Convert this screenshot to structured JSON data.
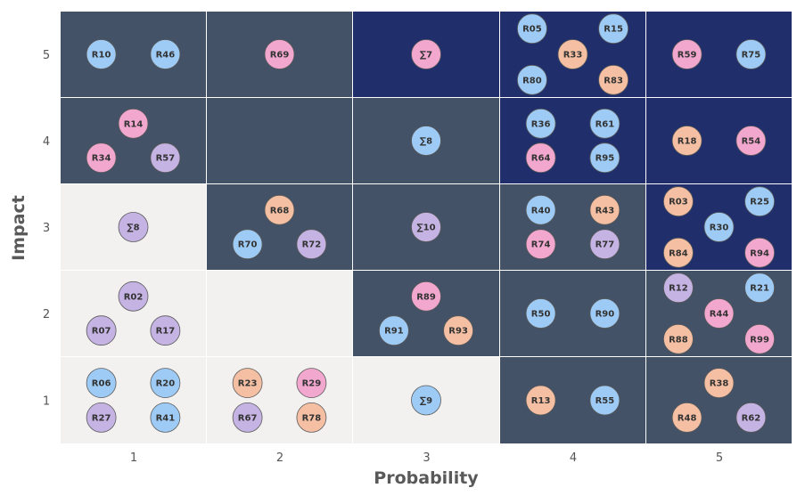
{
  "chart_data": {
    "type": "scatter",
    "subtype": "risk-matrix",
    "xlabel": "Probability",
    "ylabel": "Impact",
    "x_ticks": [
      "1",
      "2",
      "3",
      "4",
      "5"
    ],
    "y_ticks": [
      "1",
      "2",
      "3",
      "4",
      "5"
    ],
    "grid": false,
    "legend": "none",
    "colors": {
      "light": "#f2f1f0",
      "medium": "#435266",
      "high": "#202f6b",
      "blue": "#9ecbf5",
      "pink": "#f2a7cf",
      "orange": "#f4bfa2",
      "purple": "#c4b3e3",
      "marker_border": "#5a5a5a"
    },
    "cells": [
      {
        "probability": 1,
        "impact": 5,
        "level": "medium",
        "items": [
          {
            "label": "R10",
            "color": "blue"
          },
          {
            "label": "R46",
            "color": "blue"
          }
        ]
      },
      {
        "probability": 2,
        "impact": 5,
        "level": "medium",
        "items": [
          {
            "label": "R69",
            "color": "pink"
          }
        ]
      },
      {
        "probability": 3,
        "impact": 5,
        "level": "high",
        "items": [
          {
            "label": "∑7",
            "color": "pink"
          }
        ]
      },
      {
        "probability": 4,
        "impact": 5,
        "level": "high",
        "items": [
          {
            "label": "R05",
            "color": "blue"
          },
          {
            "label": "R15",
            "color": "blue"
          },
          {
            "label": "R33",
            "color": "orange"
          },
          {
            "label": "R80",
            "color": "blue"
          },
          {
            "label": "R83",
            "color": "orange"
          }
        ]
      },
      {
        "probability": 5,
        "impact": 5,
        "level": "high",
        "items": [
          {
            "label": "R59",
            "color": "pink"
          },
          {
            "label": "R75",
            "color": "blue"
          }
        ]
      },
      {
        "probability": 1,
        "impact": 4,
        "level": "medium",
        "items": [
          {
            "label": "R14",
            "color": "pink"
          },
          {
            "label": "R34",
            "color": "pink"
          },
          {
            "label": "R57",
            "color": "purple"
          }
        ]
      },
      {
        "probability": 2,
        "impact": 4,
        "level": "medium",
        "items": []
      },
      {
        "probability": 3,
        "impact": 4,
        "level": "medium",
        "items": [
          {
            "label": "∑8",
            "color": "blue"
          }
        ]
      },
      {
        "probability": 4,
        "impact": 4,
        "level": "high",
        "items": [
          {
            "label": "R36",
            "color": "blue"
          },
          {
            "label": "R61",
            "color": "blue"
          },
          {
            "label": "R64",
            "color": "pink"
          },
          {
            "label": "R95",
            "color": "blue"
          }
        ]
      },
      {
        "probability": 5,
        "impact": 4,
        "level": "high",
        "items": [
          {
            "label": "R18",
            "color": "orange"
          },
          {
            "label": "R54",
            "color": "pink"
          }
        ]
      },
      {
        "probability": 1,
        "impact": 3,
        "level": "light",
        "items": [
          {
            "label": "∑8",
            "color": "purple"
          }
        ]
      },
      {
        "probability": 2,
        "impact": 3,
        "level": "medium",
        "items": [
          {
            "label": "R68",
            "color": "orange"
          },
          {
            "label": "R70",
            "color": "blue"
          },
          {
            "label": "R72",
            "color": "purple"
          }
        ]
      },
      {
        "probability": 3,
        "impact": 3,
        "level": "medium",
        "items": [
          {
            "label": "∑10",
            "color": "purple"
          }
        ]
      },
      {
        "probability": 4,
        "impact": 3,
        "level": "medium",
        "items": [
          {
            "label": "R40",
            "color": "blue"
          },
          {
            "label": "R43",
            "color": "orange"
          },
          {
            "label": "R74",
            "color": "pink"
          },
          {
            "label": "R77",
            "color": "purple"
          }
        ]
      },
      {
        "probability": 5,
        "impact": 3,
        "level": "high",
        "items": [
          {
            "label": "R03",
            "color": "orange"
          },
          {
            "label": "R25",
            "color": "blue"
          },
          {
            "label": "R30",
            "color": "blue"
          },
          {
            "label": "R84",
            "color": "orange"
          },
          {
            "label": "R94",
            "color": "pink"
          }
        ]
      },
      {
        "probability": 1,
        "impact": 2,
        "level": "light",
        "items": [
          {
            "label": "R02",
            "color": "purple"
          },
          {
            "label": "R07",
            "color": "purple"
          },
          {
            "label": "R17",
            "color": "purple"
          }
        ]
      },
      {
        "probability": 2,
        "impact": 2,
        "level": "light",
        "items": []
      },
      {
        "probability": 3,
        "impact": 2,
        "level": "medium",
        "items": [
          {
            "label": "R89",
            "color": "pink"
          },
          {
            "label": "R91",
            "color": "blue"
          },
          {
            "label": "R93",
            "color": "orange"
          }
        ]
      },
      {
        "probability": 4,
        "impact": 2,
        "level": "medium",
        "items": [
          {
            "label": "R50",
            "color": "blue"
          },
          {
            "label": "R90",
            "color": "blue"
          }
        ]
      },
      {
        "probability": 5,
        "impact": 2,
        "level": "medium",
        "items": [
          {
            "label": "R12",
            "color": "purple"
          },
          {
            "label": "R21",
            "color": "blue"
          },
          {
            "label": "R44",
            "color": "pink"
          },
          {
            "label": "R88",
            "color": "orange"
          },
          {
            "label": "R99",
            "color": "pink"
          }
        ]
      },
      {
        "probability": 1,
        "impact": 1,
        "level": "light",
        "items": [
          {
            "label": "R06",
            "color": "blue"
          },
          {
            "label": "R20",
            "color": "blue"
          },
          {
            "label": "R27",
            "color": "purple"
          },
          {
            "label": "R41",
            "color": "blue"
          }
        ]
      },
      {
        "probability": 2,
        "impact": 1,
        "level": "light",
        "items": [
          {
            "label": "R23",
            "color": "orange"
          },
          {
            "label": "R29",
            "color": "pink"
          },
          {
            "label": "R67",
            "color": "purple"
          },
          {
            "label": "R78",
            "color": "orange"
          }
        ]
      },
      {
        "probability": 3,
        "impact": 1,
        "level": "light",
        "items": [
          {
            "label": "∑9",
            "color": "blue"
          }
        ]
      },
      {
        "probability": 4,
        "impact": 1,
        "level": "medium",
        "items": [
          {
            "label": "R13",
            "color": "orange"
          },
          {
            "label": "R55",
            "color": "blue"
          }
        ]
      },
      {
        "probability": 5,
        "impact": 1,
        "level": "medium",
        "items": [
          {
            "label": "R38",
            "color": "orange"
          },
          {
            "label": "R48",
            "color": "orange"
          },
          {
            "label": "R62",
            "color": "purple"
          }
        ]
      }
    ]
  }
}
